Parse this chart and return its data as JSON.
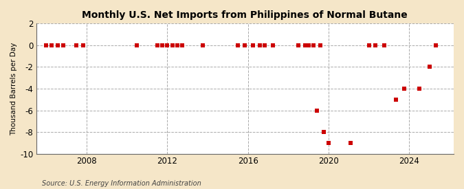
{
  "title": "Monthly U.S. Net Imports from Philippines of Normal Butane",
  "ylabel": "Thousand Barrels per Day",
  "source": "Source: U.S. Energy Information Administration",
  "fig_bg_color": "#f5e6c8",
  "plot_bg_color": "#ffffff",
  "marker_color": "#cc0000",
  "ylim": [
    -10,
    2
  ],
  "yticks": [
    -10,
    -8,
    -6,
    -4,
    -2,
    0,
    2
  ],
  "xlim_start": 2005.5,
  "xlim_end": 2026.2,
  "xticks": [
    2008,
    2012,
    2016,
    2020,
    2024
  ],
  "data_points": [
    [
      2006.0,
      0
    ],
    [
      2006.25,
      0
    ],
    [
      2006.58,
      0
    ],
    [
      2006.83,
      0
    ],
    [
      2007.5,
      0
    ],
    [
      2007.83,
      0
    ],
    [
      2010.5,
      0
    ],
    [
      2011.5,
      0
    ],
    [
      2011.75,
      0
    ],
    [
      2012.0,
      0
    ],
    [
      2012.25,
      0
    ],
    [
      2012.5,
      0
    ],
    [
      2012.75,
      0
    ],
    [
      2013.75,
      0
    ],
    [
      2015.5,
      0
    ],
    [
      2015.83,
      0
    ],
    [
      2016.25,
      0
    ],
    [
      2016.58,
      0
    ],
    [
      2016.83,
      0
    ],
    [
      2017.25,
      0
    ],
    [
      2018.5,
      0
    ],
    [
      2018.83,
      0
    ],
    [
      2019.0,
      0
    ],
    [
      2019.25,
      0
    ],
    [
      2019.58,
      0
    ],
    [
      2019.42,
      -6
    ],
    [
      2019.75,
      -8
    ],
    [
      2020.0,
      -9
    ],
    [
      2021.08,
      -9
    ],
    [
      2022.0,
      0
    ],
    [
      2022.33,
      0
    ],
    [
      2022.75,
      0
    ],
    [
      2023.33,
      -5
    ],
    [
      2023.75,
      -4
    ],
    [
      2024.5,
      -4
    ],
    [
      2025.0,
      -2
    ],
    [
      2025.33,
      0
    ]
  ]
}
